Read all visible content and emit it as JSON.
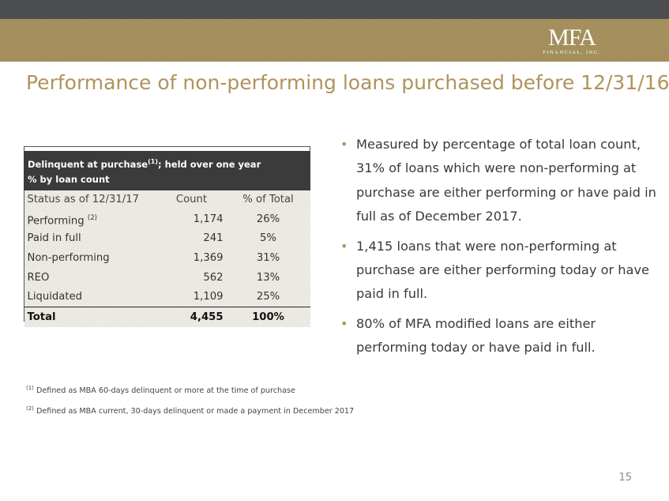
{
  "logo": {
    "mark": "MFA",
    "sub": "FINANCIAL, INC."
  },
  "title": "Performance of non-performing loans purchased before 12/31/16",
  "table": {
    "header_line1": "Delinquent at purchase",
    "header_line1_sup": "(1)",
    "header_line1_suffix": "; held over one year",
    "header_line2": "% by loan count",
    "columns": [
      "Status as of 12/31/17",
      "Count",
      "% of Total"
    ],
    "rows": [
      {
        "status": "Performing",
        "sup": "(2)",
        "count": "1,174",
        "pct": "26%"
      },
      {
        "status": "Paid in full",
        "count": "241",
        "pct": "5%"
      },
      {
        "status": "Non-performing",
        "count": "1,369",
        "pct": "31%"
      },
      {
        "status": "REO",
        "count": "562",
        "pct": "13%"
      },
      {
        "status": "Liquidated",
        "count": "1,109",
        "pct": "25%"
      }
    ],
    "total": {
      "label": "Total",
      "count": "4,455",
      "pct": "100%"
    }
  },
  "bullets": [
    "Measured by percentage of total loan count, 31% of loans which were non-performing at purchase are either performing or have paid in full as of December 2017.",
    "1,415 loans that were non-performing at purchase are either performing today or have paid in full.",
    "80% of MFA modified loans are either performing today or have paid in full."
  ],
  "footnotes": [
    {
      "marker": "(1)",
      "text": "Defined as MBA 60-days delinquent or more at the time of purchase"
    },
    {
      "marker": "(2)",
      "text": "Defined as MBA current, 30-days delinquent or made a payment in December 2017"
    }
  ],
  "page_number": "15",
  "colors": {
    "gold": "#b0935c",
    "band": "#a58f5b",
    "dark_bar": "#4b4d4f",
    "table_header": "#3b3b3b",
    "table_fill": "#eeece5"
  }
}
